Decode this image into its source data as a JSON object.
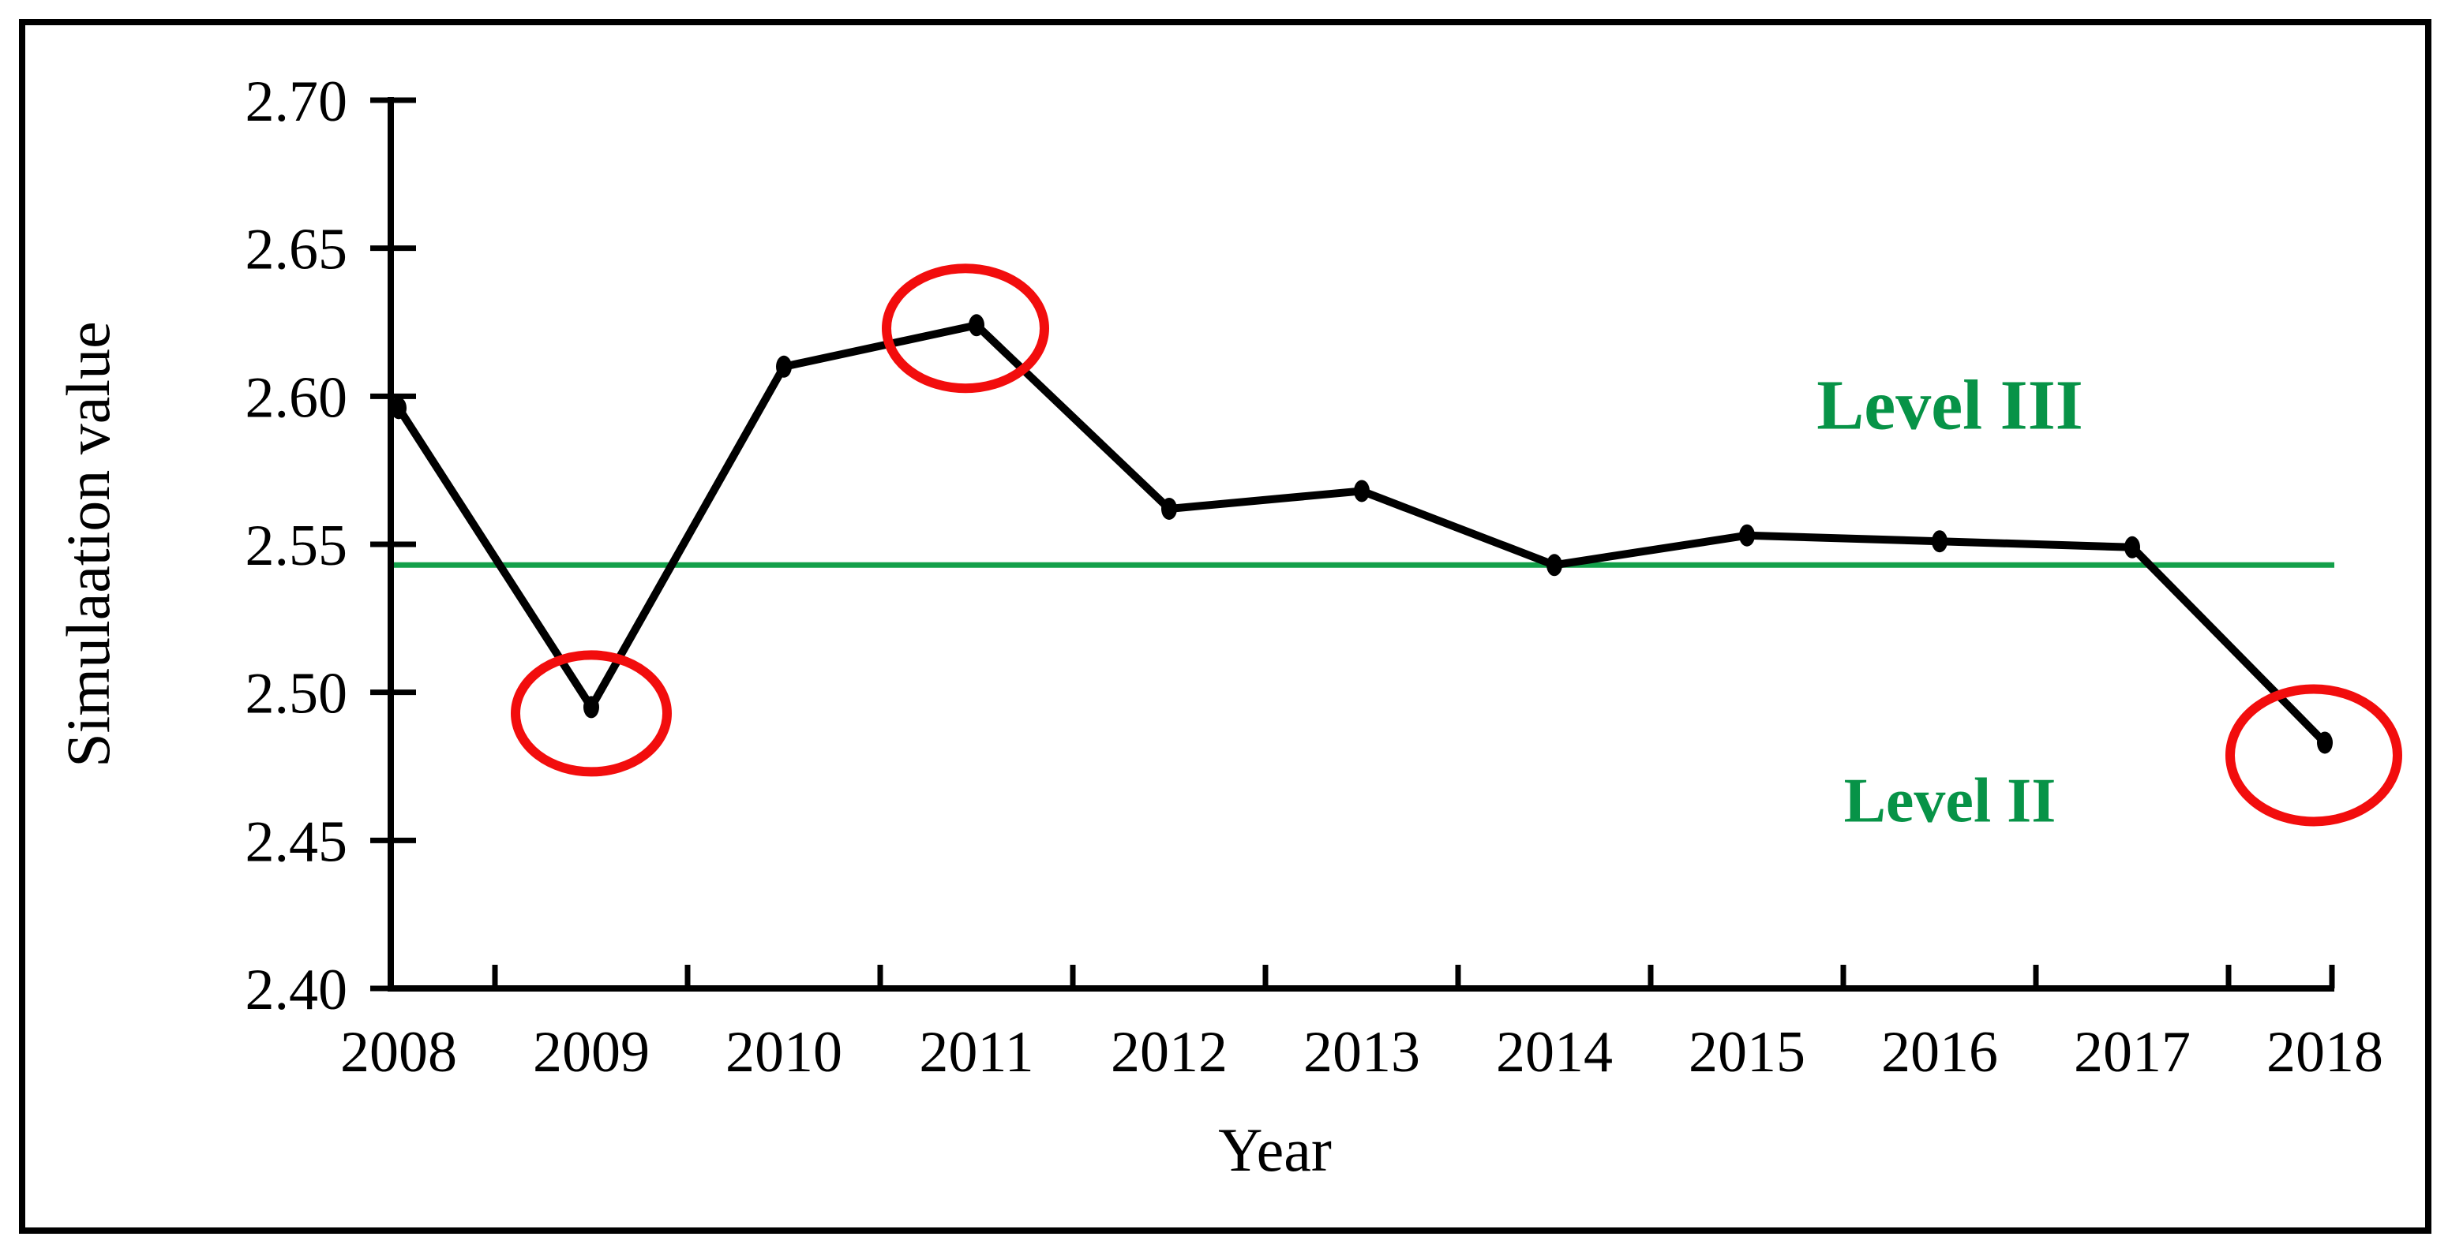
{
  "chart_data": {
    "type": "line",
    "categories": [
      2008,
      2009,
      2010,
      2011,
      2012,
      2013,
      2014,
      2015,
      2016,
      2017,
      2018
    ],
    "series": [
      {
        "name": "Simulation value",
        "values": [
          2.596,
          2.495,
          2.61,
          2.624,
          2.562,
          2.568,
          2.543,
          2.553,
          2.551,
          2.549,
          2.483
        ]
      }
    ],
    "xlabel": "Year",
    "ylabel": "Simulaation value",
    "ylim": [
      2.4,
      2.7
    ],
    "ytick_step": 0.05,
    "yticks": [
      "2.40",
      "2.45",
      "2.50",
      "2.55",
      "2.60",
      "2.65",
      "2.70"
    ],
    "grid": "off",
    "legend": "none",
    "reference_line": {
      "value": 2.543,
      "color": "#13a04a"
    },
    "annotations": [
      {
        "text": "Level III",
        "position": "above-reference-line-right"
      },
      {
        "text": "Level II",
        "position": "below-reference-line-right"
      }
    ],
    "highlighted_points": [
      {
        "year": 2009,
        "value": 2.495
      },
      {
        "year": 2011,
        "value": 2.624
      },
      {
        "year": 2018,
        "value": 2.483
      }
    ]
  },
  "style": {
    "series_color": "#000000",
    "marker_color": "#000000",
    "highlight_circle_color": "#f20d0d",
    "annotation_color": "#079347",
    "frame_color": "#000000",
    "background": "#ffffff"
  }
}
